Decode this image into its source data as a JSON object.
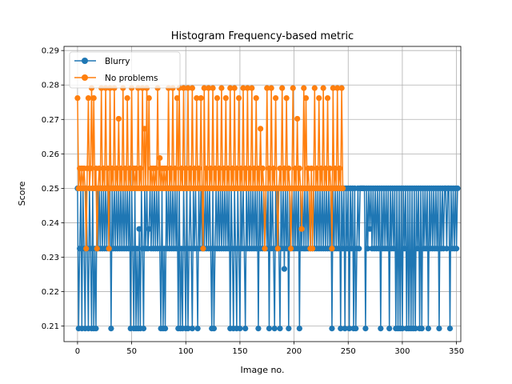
{
  "chart_data": {
    "type": "line",
    "title": "Histogram Frequency-based metric",
    "xlabel": "Image no.",
    "ylabel": "Score",
    "xlim": [
      -12.5,
      354
    ],
    "ylim": [
      0.2055,
      0.2912
    ],
    "xticks": [
      0,
      50,
      100,
      150,
      200,
      250,
      300,
      350
    ],
    "yticks": [
      0.21,
      0.22,
      0.23,
      0.24,
      0.25,
      0.26,
      0.27,
      0.28,
      0.29
    ],
    "grid": true,
    "legend_position": "top-left",
    "series": [
      {
        "name": "Blurry",
        "color": "#1f77b4",
        "values": [
          0.25,
          0.2093,
          0.2325,
          0.25,
          0.2093,
          0.25,
          0.2325,
          0.2093,
          0.25,
          0.2325,
          0.2093,
          0.25,
          0.2325,
          0.2093,
          0.25,
          0.2093,
          0.2325,
          0.2093,
          0.25,
          0.2325,
          0.25,
          0.2325,
          0.25,
          0.2325,
          0.25,
          0.2325,
          0.25,
          0.2325,
          0.25,
          0.2325,
          0.25,
          0.2093,
          0.25,
          0.2325,
          0.25,
          0.2325,
          0.25,
          0.2325,
          0.25,
          0.2325,
          0.25,
          0.2325,
          0.25,
          0.2325,
          0.25,
          0.2325,
          0.25,
          0.2325,
          0.25,
          0.2093,
          0.25,
          0.2325,
          0.2093,
          0.25,
          0.2093,
          0.2325,
          0.2093,
          0.2382,
          0.2093,
          0.25,
          0.2325,
          0.2093,
          0.25,
          0.2325,
          0.25,
          0.2325,
          0.2382,
          0.25,
          0.2325,
          0.25,
          0.2325,
          0.25,
          0.2325,
          0.25,
          0.2325,
          0.25,
          0.2325,
          0.2093,
          0.25,
          0.2093,
          0.2325,
          0.2093,
          0.25,
          0.2325,
          0.25,
          0.2325,
          0.25,
          0.2325,
          0.25,
          0.2325,
          0.25,
          0.2325,
          0.25,
          0.2093,
          0.25,
          0.2093,
          0.2325,
          0.2093,
          0.25,
          0.2325,
          0.2093,
          0.25,
          0.2093,
          0.2325,
          0.25,
          0.2325,
          0.2093,
          0.25,
          0.2325,
          0.25,
          0.2325,
          0.2093,
          0.25,
          0.2325,
          0.25,
          0.2325,
          0.25,
          0.2325,
          0.25,
          0.2325,
          0.25,
          0.2325,
          0.25,
          0.2325,
          0.2093,
          0.25,
          0.2093,
          0.2325,
          0.25,
          0.2325,
          0.25,
          0.2325,
          0.25,
          0.2325,
          0.25,
          0.2325,
          0.25,
          0.2325,
          0.25,
          0.2325,
          0.25,
          0.2093,
          0.25,
          0.2325,
          0.2093,
          0.25,
          0.2325,
          0.2093,
          0.25,
          0.2325,
          0.2093,
          0.25,
          0.2325,
          0.25,
          0.2325,
          0.2093,
          0.25,
          0.2325,
          0.25,
          0.2325,
          0.25,
          0.2325,
          0.25,
          0.2325,
          0.25,
          0.2325,
          0.25,
          0.2093,
          0.25,
          0.2325,
          0.25,
          0.2325,
          0.25,
          0.2325,
          0.25,
          0.2325,
          0.25,
          0.2093,
          0.25,
          0.2325,
          0.25,
          0.2325,
          0.2093,
          0.25,
          0.2325,
          0.25,
          0.2325,
          0.2093,
          0.25,
          0.2325,
          0.25,
          0.2266,
          0.25,
          0.2325,
          0.25,
          0.2093,
          0.25,
          0.2325,
          0.25,
          0.2325,
          0.25,
          0.2325,
          0.25,
          0.2325,
          0.25,
          0.2093,
          0.25,
          0.2325,
          0.25,
          0.2325,
          0.25,
          0.2325,
          0.25,
          0.2325,
          0.25,
          0.2325,
          0.25,
          0.2325,
          0.25,
          0.2325,
          0.25,
          0.2325,
          0.25,
          0.2325,
          0.25,
          0.2325,
          0.25,
          0.2325,
          0.25,
          0.2325,
          0.25,
          0.2325,
          0.25,
          0.2325,
          0.25,
          0.2093,
          0.25,
          0.2325,
          0.25,
          0.2325,
          0.25,
          0.2325,
          0.25,
          0.2093,
          0.25,
          0.2325,
          0.25,
          0.2093,
          0.25,
          0.2325,
          0.25,
          0.2093,
          0.25,
          0.2325,
          0.25,
          0.2093,
          0.25,
          0.2093,
          0.2325,
          0.25,
          0.2325,
          0.25,
          0.25,
          0.25,
          0.25,
          0.25,
          0.2093,
          0.25,
          0.2325,
          0.25,
          0.2382,
          0.25,
          0.2325,
          0.25,
          0.2325,
          0.25,
          0.2325,
          0.25,
          0.2325,
          0.25,
          0.2093,
          0.25,
          0.2325,
          0.25,
          0.2325,
          0.25,
          0.2325,
          0.25,
          0.2093,
          0.25,
          0.2325,
          0.25,
          0.2325,
          0.25,
          0.2093,
          0.25,
          0.2093,
          0.25,
          0.2093,
          0.25,
          0.2093,
          0.25,
          0.2325,
          0.25,
          0.2093,
          0.25,
          0.2093,
          0.25,
          0.2093,
          0.25,
          0.2093,
          0.25,
          0.2093,
          0.25,
          0.2325,
          0.25,
          0.2093,
          0.25,
          0.2093,
          0.25,
          0.2325,
          0.25,
          0.2325,
          0.25,
          0.2093,
          0.25,
          0.2325,
          0.25,
          0.2325,
          0.25,
          0.2325,
          0.25,
          0.2325,
          0.25,
          0.2093,
          0.25,
          0.2325,
          0.25,
          0.2325,
          0.25,
          0.25,
          0.2325,
          0.25,
          0.25,
          0.2093,
          0.25,
          0.2325,
          0.25,
          0.2325,
          0.25,
          0.2325,
          0.25
        ]
      },
      {
        "name": "No problems",
        "color": "#ff7f0e",
        "values": [
          0.2762,
          0.25,
          0.2558,
          0.25,
          0.2558,
          0.25,
          0.2558,
          0.25,
          0.2325,
          0.2558,
          0.2762,
          0.25,
          0.2558,
          0.2791,
          0.25,
          0.2762,
          0.25,
          0.2558,
          0.2325,
          0.25,
          0.2558,
          0.25,
          0.2791,
          0.25,
          0.2558,
          0.25,
          0.2791,
          0.25,
          0.2558,
          0.2325,
          0.2791,
          0.25,
          0.2558,
          0.25,
          0.2791,
          0.25,
          0.2558,
          0.25,
          0.2702,
          0.25,
          0.2558,
          0.25,
          0.2791,
          0.25,
          0.2558,
          0.25,
          0.2762,
          0.25,
          0.2558,
          0.25,
          0.2791,
          0.25,
          0.2558,
          0.25,
          0.2558,
          0.25,
          0.2791,
          0.25,
          0.2558,
          0.25,
          0.2791,
          0.25,
          0.2673,
          0.25,
          0.2791,
          0.25,
          0.2762,
          0.25,
          0.2558,
          0.25,
          0.2558,
          0.25,
          0.2558,
          0.25,
          0.2791,
          0.25,
          0.2588,
          0.25,
          0.2558,
          0.25,
          0.2558,
          0.25,
          0.2558,
          0.25,
          0.2791,
          0.25,
          0.2558,
          0.25,
          0.2791,
          0.25,
          0.2558,
          0.25,
          0.2762,
          0.25,
          0.2791,
          0.25,
          0.2558,
          0.25,
          0.2791,
          0.25,
          0.2558,
          0.25,
          0.2791,
          0.25,
          0.2558,
          0.25,
          0.2791,
          0.25,
          0.2558,
          0.25,
          0.2762,
          0.25,
          0.2558,
          0.25,
          0.2762,
          0.25,
          0.2325,
          0.2791,
          0.25,
          0.2558,
          0.25,
          0.2791,
          0.25,
          0.2558,
          0.25,
          0.2791,
          0.25,
          0.2558,
          0.25,
          0.2762,
          0.25,
          0.2558,
          0.25,
          0.2791,
          0.25,
          0.2558,
          0.25,
          0.2762,
          0.25,
          0.2558,
          0.25,
          0.2791,
          0.25,
          0.2558,
          0.25,
          0.2791,
          0.25,
          0.2558,
          0.25,
          0.2762,
          0.25,
          0.2558,
          0.25,
          0.2791,
          0.25,
          0.2558,
          0.25,
          0.2791,
          0.25,
          0.2558,
          0.25,
          0.2791,
          0.25,
          0.2558,
          0.25,
          0.2762,
          0.25,
          0.2558,
          0.25,
          0.2673,
          0.25,
          0.2558,
          0.25,
          0.2325,
          0.25,
          0.2791,
          0.25,
          0.2558,
          0.25,
          0.2791,
          0.25,
          0.2558,
          0.25,
          0.2762,
          0.25,
          0.2325,
          0.25,
          0.2558,
          0.25,
          0.2791,
          0.25,
          0.2558,
          0.25,
          0.2762,
          0.25,
          0.2558,
          0.25,
          0.2325,
          0.25,
          0.2791,
          0.25,
          0.2558,
          0.25,
          0.2702,
          0.25,
          0.2558,
          0.25,
          0.2382,
          0.25,
          0.2791,
          0.25,
          0.2762,
          0.25,
          0.2558,
          0.25,
          0.2325,
          0.2558,
          0.2325,
          0.25,
          0.2791,
          0.25,
          0.2558,
          0.25,
          0.2762,
          0.25,
          0.2558,
          0.25,
          0.2791,
          0.25,
          0.2558,
          0.25,
          0.2762,
          0.25,
          0.2558,
          0.25,
          0.2325,
          0.2791,
          0.25,
          0.2558,
          0.25,
          0.2791,
          0.25,
          0.2558,
          0.25,
          0.2791,
          0.25
        ]
      }
    ]
  }
}
